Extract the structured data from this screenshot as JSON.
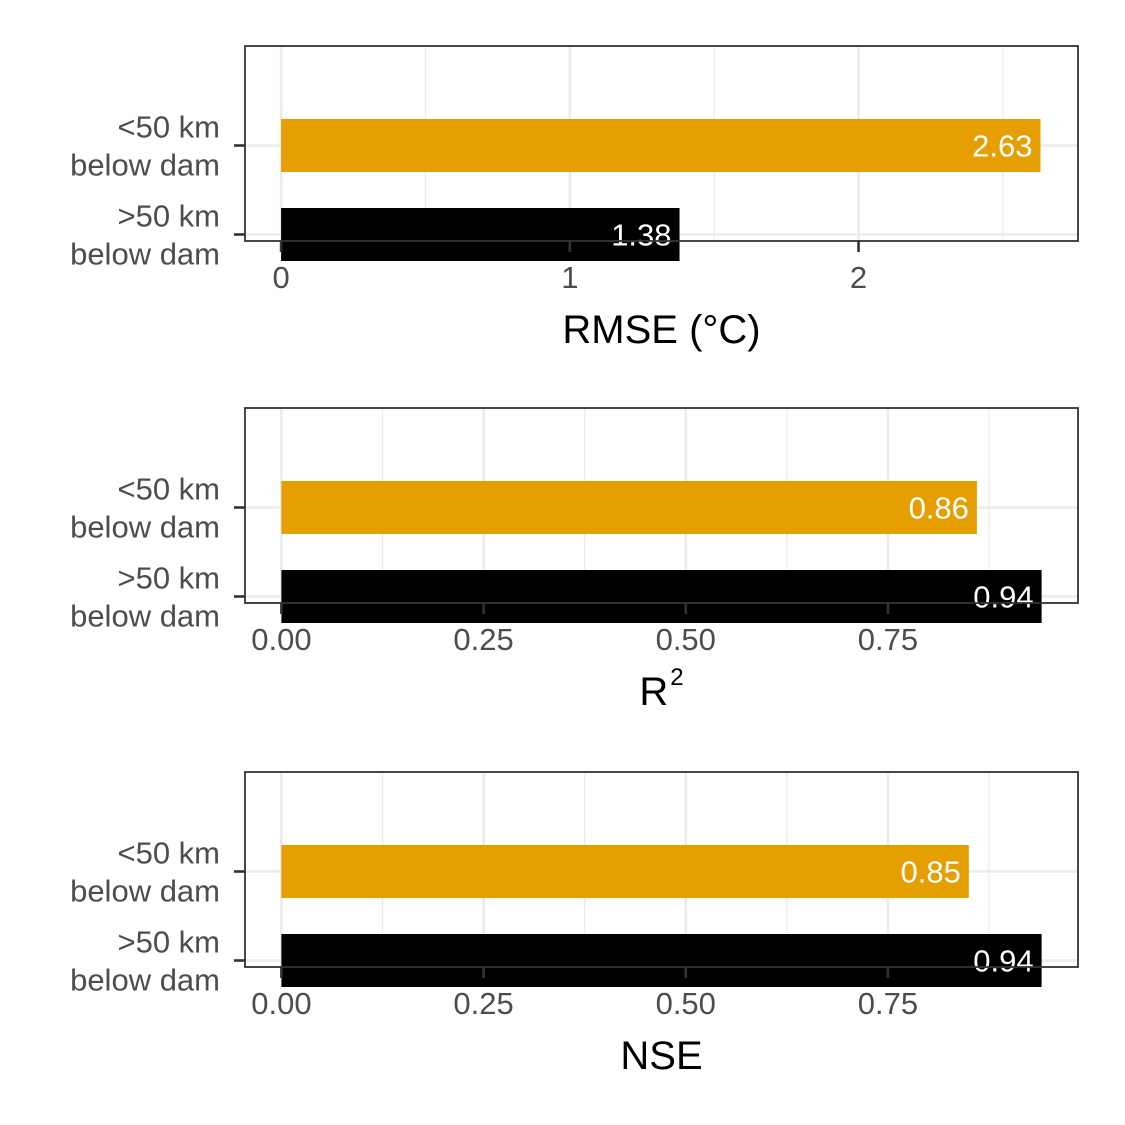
{
  "chart_data": [
    {
      "type": "bar",
      "orientation": "horizontal",
      "categories": [
        [
          "<50 km",
          "below dam"
        ],
        [
          ">50 km",
          "below dam"
        ]
      ],
      "values": [
        2.63,
        1.38
      ],
      "value_labels": [
        "2.63",
        "1.38"
      ],
      "colors": [
        "#E69F00",
        "#000000"
      ],
      "xlabel": "RMSE (°C)",
      "xlim": [
        -0.125,
        2.76
      ],
      "xticks": [
        0,
        1,
        2
      ],
      "xtick_labels": [
        "0",
        "1",
        "2"
      ],
      "grid": true,
      "legend": "none"
    },
    {
      "type": "bar",
      "orientation": "horizontal",
      "categories": [
        [
          "<50 km",
          "below dam"
        ],
        [
          ">50 km",
          "below dam"
        ]
      ],
      "values": [
        0.86,
        0.94
      ],
      "value_labels": [
        "0.86",
        "0.94"
      ],
      "colors": [
        "#E69F00",
        "#000000"
      ],
      "xlabel": "R",
      "xlabel_superscript": "2",
      "xlim": [
        -0.045,
        0.985
      ],
      "xticks": [
        0,
        0.25,
        0.5,
        0.75
      ],
      "xtick_labels": [
        "0.00",
        "0.25",
        "0.50",
        "0.75"
      ],
      "grid": true,
      "legend": "none"
    },
    {
      "type": "bar",
      "orientation": "horizontal",
      "categories": [
        [
          "<50 km",
          "below dam"
        ],
        [
          ">50 km",
          "below dam"
        ]
      ],
      "values": [
        0.85,
        0.94
      ],
      "value_labels": [
        "0.85",
        "0.94"
      ],
      "colors": [
        "#E69F00",
        "#000000"
      ],
      "xlabel": "NSE",
      "xlim": [
        -0.045,
        0.985
      ],
      "xticks": [
        0,
        0.25,
        0.5,
        0.75
      ],
      "xtick_labels": [
        "0.00",
        "0.25",
        "0.50",
        "0.75"
      ],
      "grid": true,
      "legend": "none"
    }
  ]
}
